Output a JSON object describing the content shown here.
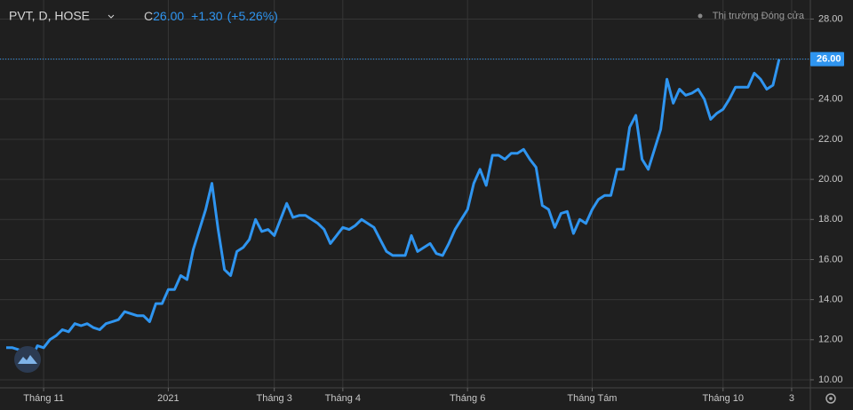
{
  "header": {
    "symbol": "PVT, D, HOSE",
    "close_prefix": "C",
    "close": "26.00",
    "change": "+1.30",
    "change_pct": "(+5.26%)",
    "status": "Thị trường Đóng cửa"
  },
  "chart_data": {
    "type": "line",
    "color": "#2f95f0",
    "grid": true,
    "values": [
      11.6,
      11.6,
      11.5,
      11.1,
      11.0,
      11.7,
      11.6,
      12.0,
      12.2,
      12.5,
      12.4,
      12.8,
      12.7,
      12.8,
      12.6,
      12.5,
      12.8,
      12.9,
      13.0,
      13.4,
      13.3,
      13.2,
      13.2,
      12.9,
      13.8,
      13.8,
      14.5,
      14.5,
      15.2,
      15.0,
      16.5,
      17.5,
      18.5,
      19.8,
      17.5,
      15.5,
      15.2,
      16.4,
      16.6,
      17.0,
      18.0,
      17.4,
      17.5,
      17.2,
      18.0,
      18.8,
      18.1,
      18.2,
      18.2,
      18.0,
      17.8,
      17.5,
      16.8,
      17.2,
      17.6,
      17.5,
      17.7,
      18.0,
      17.8,
      17.6,
      17.0,
      16.4,
      16.2,
      16.2,
      16.2,
      17.2,
      16.4,
      16.6,
      16.8,
      16.3,
      16.2,
      16.8,
      17.5,
      18.0,
      18.5,
      19.8,
      20.5,
      19.7,
      21.2,
      21.2,
      21.0,
      21.3,
      21.3,
      21.5,
      21.0,
      20.6,
      18.7,
      18.5,
      17.6,
      18.3,
      18.4,
      17.3,
      18.0,
      17.8,
      18.5,
      19.0,
      19.2,
      19.2,
      20.5,
      20.5,
      22.6,
      23.2,
      21.0,
      20.5,
      21.5,
      22.5,
      25.0,
      23.8,
      24.5,
      24.2,
      24.3,
      24.5,
      24.0,
      23.0,
      23.3,
      23.5,
      24.0,
      24.6,
      24.6,
      24.6,
      25.3,
      25.0,
      24.5,
      24.7,
      26.0
    ],
    "xlim": [
      -1,
      129
    ],
    "xticks": [
      {
        "value": 6,
        "label": "Tháng 11"
      },
      {
        "value": 26,
        "label": "2021"
      },
      {
        "value": 43,
        "label": "Tháng 3"
      },
      {
        "value": 54,
        "label": "Tháng 4"
      },
      {
        "value": 74,
        "label": "Tháng 6"
      },
      {
        "value": 94,
        "label": "Tháng Tám"
      },
      {
        "value": 115,
        "label": "Tháng 10"
      },
      {
        "value": 126,
        "label": "3"
      }
    ],
    "ylim": [
      9.6,
      28.95
    ],
    "yticks": [
      {
        "value": 10,
        "label": "10.00"
      },
      {
        "value": 12,
        "label": "12.00"
      },
      {
        "value": 14,
        "label": "14.00"
      },
      {
        "value": 16,
        "label": "16.00"
      },
      {
        "value": 18,
        "label": "18.00"
      },
      {
        "value": 20,
        "label": "20.00"
      },
      {
        "value": 22,
        "label": "22.00"
      },
      {
        "value": 24,
        "label": "24.00"
      },
      {
        "value": 26,
        "label": "26.00"
      },
      {
        "value": 28,
        "label": "28.00"
      }
    ],
    "price_line": {
      "value": 26,
      "label": "26.00"
    }
  }
}
